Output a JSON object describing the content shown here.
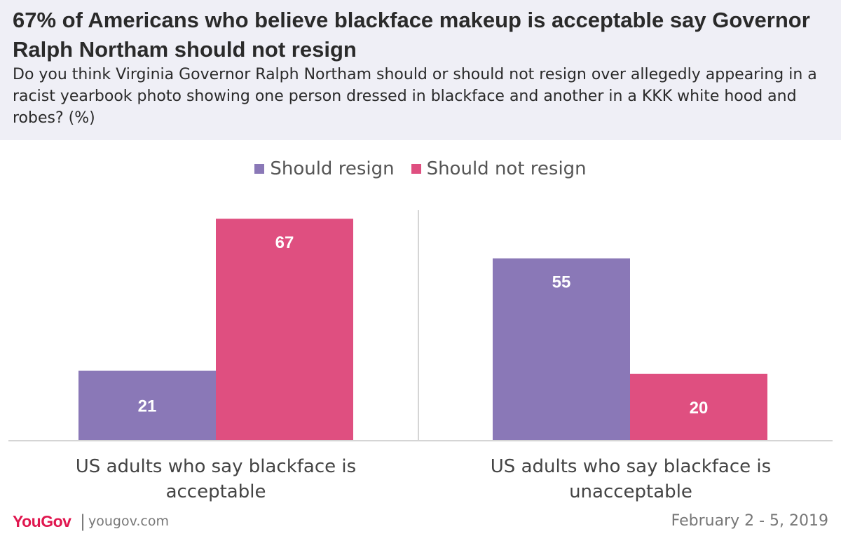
{
  "header": {
    "title": "67% of Americans who believe blackface makeup is acceptable say Governor Ralph Northam should not resign",
    "subtitle": "Do you think Virginia Governor Ralph Northam should or should not resign over allegedly appearing in a racist yearbook photo showing one person dressed in blackface and another in a KKK white hood and robes? (%)"
  },
  "colors": {
    "should_resign": "#8a78b7",
    "should_not_resign": "#df4f80",
    "header_bg": "#efeff6",
    "brand": "#e0174f"
  },
  "chart_data": {
    "type": "bar",
    "categories": [
      "US adults who say blackface is acceptable",
      "US adults who say blackface is unacceptable"
    ],
    "series": [
      {
        "name": "Should resign",
        "values": [
          21,
          55
        ]
      },
      {
        "name": "Should not resign",
        "values": [
          67,
          20
        ]
      }
    ],
    "ylim": [
      0,
      70
    ],
    "legend_position": "top-center",
    "grid": false
  },
  "footer": {
    "logo": "YouGov",
    "separator": "|",
    "site": "yougov.com",
    "date": "February 2 - 5, 2019"
  }
}
